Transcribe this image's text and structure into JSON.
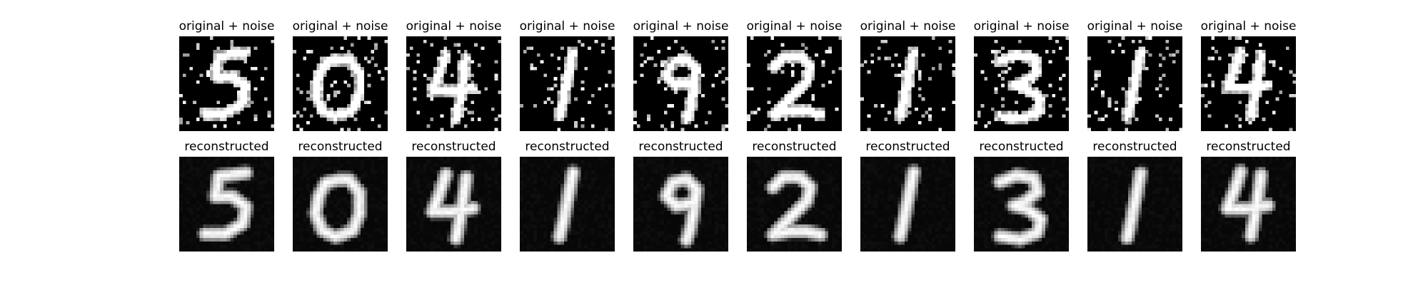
{
  "figure": {
    "background": "#ffffff",
    "rows": [
      {
        "kind": "noisy",
        "title": "original + noise",
        "digits": [
          "5",
          "0",
          "4",
          "1",
          "9",
          "2",
          "1",
          "3",
          "1",
          "4"
        ]
      },
      {
        "kind": "reconstructed",
        "title": "reconstructed",
        "digits": [
          "5",
          "0",
          "4",
          "1",
          "9",
          "2",
          "1",
          "3",
          "1",
          "4"
        ]
      }
    ]
  }
}
